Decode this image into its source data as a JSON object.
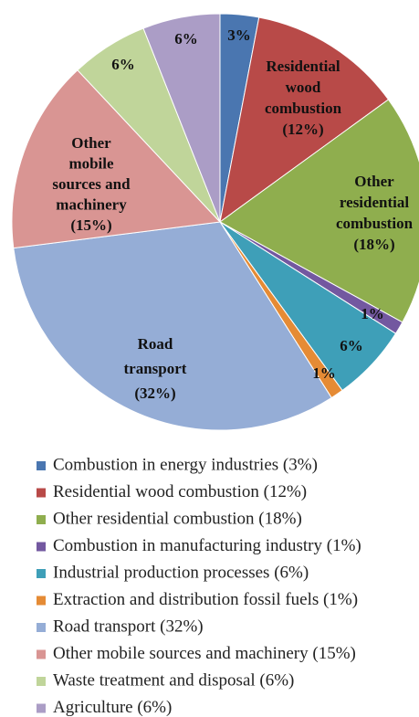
{
  "chart_data": {
    "type": "pie",
    "categories": [
      "Combustion in energy industries (3%)",
      "Residential wood combustion (12%)",
      "Other residential combustion (18%)",
      "Combustion in manufacturing industry (1%)",
      "Industrial production processes (6%)",
      "Extraction and distribution fossil fuels (1%)",
      "Road transport (32%)",
      "Other mobile sources and machinery (15%)",
      "Waste treatment and disposal (6%)",
      "Agriculture (6%)"
    ],
    "values": [
      3,
      12,
      18,
      1,
      6,
      1,
      32,
      15,
      6,
      6
    ],
    "value_labels": [
      "3%",
      "Residential wood combustion (12%)",
      "Other residential combustion (18%)",
      "1%",
      "6%",
      "1%",
      "Road transport (32%)",
      "Other mobile sources and machinery (15%)",
      "6%",
      "6%"
    ],
    "colors": [
      "#4a76b0",
      "#b84a48",
      "#8fae4e",
      "#7358a0",
      "#3e9fb8",
      "#e58b35",
      "#95add6",
      "#d99593",
      "#c0d59a",
      "#ab9dc6"
    ],
    "legend": "bottom"
  }
}
